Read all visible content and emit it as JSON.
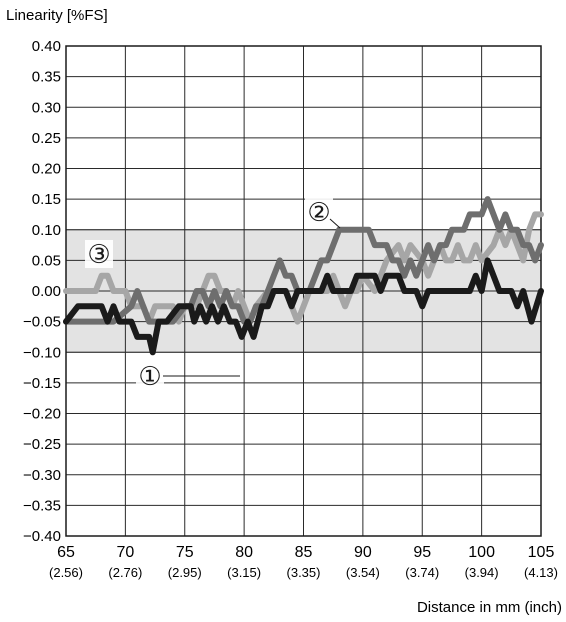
{
  "chart_data": {
    "type": "line",
    "title": "",
    "ylabel": "Linearity [%FS]",
    "xlabel": "Distance in mm (inch)",
    "xlim": [
      65,
      105
    ],
    "ylim": [
      -0.4,
      0.4
    ],
    "grid": true,
    "tolerance_band": [
      -0.1,
      0.1
    ],
    "x_ticks": [
      {
        "mm": "65",
        "inch": "(2.56)"
      },
      {
        "mm": "70",
        "inch": "(2.76)"
      },
      {
        "mm": "75",
        "inch": "(2.95)"
      },
      {
        "mm": "80",
        "inch": "(3.15)"
      },
      {
        "mm": "85",
        "inch": "(3.35)"
      },
      {
        "mm": "90",
        "inch": "(3.54)"
      },
      {
        "mm": "95",
        "inch": "(3.74)"
      },
      {
        "mm": "100",
        "inch": "(3.94)"
      },
      {
        "mm": "105",
        "inch": "(4.13)"
      }
    ],
    "y_ticks": [
      "0.40",
      "0.35",
      "0.30",
      "0.25",
      "0.20",
      "0.15",
      "0.10",
      "0.05",
      "0.00",
      "−0.05",
      "−0.10",
      "−0.15",
      "−0.20",
      "−0.25",
      "−0.30",
      "−0.35",
      "−0.40"
    ],
    "series": [
      {
        "label": "①",
        "color": "#1a1a1a",
        "points": [
          [
            65,
            -0.05
          ],
          [
            66,
            -0.025
          ],
          [
            68,
            -0.025
          ],
          [
            68.5,
            -0.05
          ],
          [
            69,
            -0.025
          ],
          [
            69.5,
            -0.05
          ],
          [
            70.5,
            -0.05
          ],
          [
            71,
            -0.075
          ],
          [
            72,
            -0.075
          ],
          [
            72.3,
            -0.1
          ],
          [
            72.8,
            -0.05
          ],
          [
            73.5,
            -0.05
          ],
          [
            74.5,
            -0.025
          ],
          [
            75.5,
            -0.025
          ],
          [
            75.8,
            -0.05
          ],
          [
            76.3,
            -0.025
          ],
          [
            76.8,
            -0.05
          ],
          [
            77.3,
            -0.025
          ],
          [
            77.8,
            -0.05
          ],
          [
            78.3,
            -0.025
          ],
          [
            78.8,
            -0.05
          ],
          [
            79.3,
            -0.05
          ],
          [
            79.8,
            -0.075
          ],
          [
            80.3,
            -0.05
          ],
          [
            80.8,
            -0.075
          ],
          [
            81.5,
            -0.025
          ],
          [
            82,
            -0.025
          ],
          [
            82.5,
            0
          ],
          [
            83.5,
            0
          ],
          [
            84,
            -0.025
          ],
          [
            84.5,
            0
          ],
          [
            86.5,
            0
          ],
          [
            87,
            0.025
          ],
          [
            87.5,
            0
          ],
          [
            89,
            0
          ],
          [
            89.5,
            0.025
          ],
          [
            91,
            0.025
          ],
          [
            91.5,
            0
          ],
          [
            92,
            0.025
          ],
          [
            93,
            0.025
          ],
          [
            93.5,
            0
          ],
          [
            94.5,
            0
          ],
          [
            95,
            -0.025
          ],
          [
            95.5,
            0
          ],
          [
            98,
            0
          ],
          [
            99,
            0
          ],
          [
            99.5,
            0.025
          ],
          [
            100,
            0
          ],
          [
            100.5,
            0.05
          ],
          [
            101,
            0.025
          ],
          [
            101.5,
            0
          ],
          [
            102.5,
            0
          ],
          [
            103,
            -0.025
          ],
          [
            103.5,
            0
          ],
          [
            104.2,
            -0.05
          ],
          [
            105,
            0
          ]
        ]
      },
      {
        "label": "②",
        "color": "#6e6e6e",
        "points": [
          [
            65,
            -0.05
          ],
          [
            66,
            -0.05
          ],
          [
            67,
            -0.05
          ],
          [
            68,
            -0.05
          ],
          [
            69,
            -0.05
          ],
          [
            70.5,
            -0.025
          ],
          [
            71,
            0
          ],
          [
            71.5,
            -0.025
          ],
          [
            72,
            -0.05
          ],
          [
            73,
            -0.05
          ],
          [
            74,
            -0.05
          ],
          [
            75,
            -0.025
          ],
          [
            75.5,
            -0.025
          ],
          [
            76,
            0
          ],
          [
            76.5,
            0
          ],
          [
            77,
            -0.025
          ],
          [
            77.5,
            0
          ],
          [
            78,
            -0.025
          ],
          [
            78.5,
            0
          ],
          [
            79,
            -0.025
          ],
          [
            79.5,
            -0.025
          ],
          [
            80,
            -0.05
          ],
          [
            80.5,
            -0.05
          ],
          [
            81,
            -0.025
          ],
          [
            81.5,
            -0.025
          ],
          [
            82,
            0
          ],
          [
            82.5,
            0.025
          ],
          [
            83,
            0.05
          ],
          [
            83.5,
            0.025
          ],
          [
            84,
            0.025
          ],
          [
            84.5,
            0
          ],
          [
            85.5,
            0
          ],
          [
            86,
            0.025
          ],
          [
            86.5,
            0.05
          ],
          [
            87,
            0.05
          ],
          [
            88,
            0.1
          ],
          [
            90,
            0.1
          ],
          [
            90.5,
            0.1
          ],
          [
            91,
            0.075
          ],
          [
            92,
            0.075
          ],
          [
            92.5,
            0.05
          ],
          [
            93,
            0.05
          ],
          [
            93.5,
            0.025
          ],
          [
            94,
            0.05
          ],
          [
            94.5,
            0.025
          ],
          [
            95,
            0.05
          ],
          [
            95.5,
            0.075
          ],
          [
            96,
            0.05
          ],
          [
            96.5,
            0.075
          ],
          [
            97,
            0.075
          ],
          [
            97.5,
            0.1
          ],
          [
            98.5,
            0.1
          ],
          [
            99,
            0.125
          ],
          [
            100,
            0.125
          ],
          [
            100.5,
            0.15
          ],
          [
            101,
            0.125
          ],
          [
            101.5,
            0.1
          ],
          [
            102,
            0.125
          ],
          [
            102.5,
            0.1
          ],
          [
            103,
            0.1
          ],
          [
            103.5,
            0.075
          ],
          [
            104,
            0.075
          ],
          [
            104.5,
            0.05
          ],
          [
            105,
            0.075
          ]
        ]
      },
      {
        "label": "③",
        "color": "#a6a6a6",
        "points": [
          [
            65,
            0
          ],
          [
            66,
            0
          ],
          [
            67,
            0
          ],
          [
            67.5,
            0
          ],
          [
            68,
            0.025
          ],
          [
            68.5,
            0.025
          ],
          [
            69,
            0
          ],
          [
            70,
            0
          ],
          [
            70.5,
            -0.025
          ],
          [
            71,
            -0.025
          ],
          [
            71.5,
            -0.025
          ],
          [
            72,
            -0.05
          ],
          [
            72.5,
            -0.025
          ],
          [
            73,
            -0.025
          ],
          [
            74,
            -0.025
          ],
          [
            74.5,
            -0.05
          ],
          [
            75,
            -0.025
          ],
          [
            76,
            -0.025
          ],
          [
            76.5,
            0
          ],
          [
            77,
            0.025
          ],
          [
            77.5,
            0.025
          ],
          [
            78,
            0
          ],
          [
            78.5,
            0
          ],
          [
            79,
            -0.025
          ],
          [
            79.5,
            0
          ],
          [
            80,
            -0.025
          ],
          [
            80.5,
            -0.05
          ],
          [
            81,
            -0.025
          ],
          [
            82,
            0
          ],
          [
            83,
            0
          ],
          [
            83.5,
            0
          ],
          [
            84,
            -0.025
          ],
          [
            84.5,
            -0.05
          ],
          [
            85,
            -0.025
          ],
          [
            85.5,
            0
          ],
          [
            86,
            0
          ],
          [
            87,
            0
          ],
          [
            87.5,
            0.025
          ],
          [
            88,
            0
          ],
          [
            88.5,
            -0.025
          ],
          [
            89,
            0
          ],
          [
            89.5,
            0
          ],
          [
            90,
            0.025
          ],
          [
            91,
            0
          ],
          [
            91.5,
            0.025
          ],
          [
            92,
            0.05
          ],
          [
            93,
            0.075
          ],
          [
            93.5,
            0.05
          ],
          [
            94,
            0.075
          ],
          [
            95,
            0.05
          ],
          [
            95.5,
            0.025
          ],
          [
            96,
            0.05
          ],
          [
            96.5,
            0.075
          ],
          [
            97,
            0.05
          ],
          [
            97.5,
            0.05
          ],
          [
            98,
            0.075
          ],
          [
            98.5,
            0.05
          ],
          [
            99,
            0.05
          ],
          [
            99.5,
            0.075
          ],
          [
            100,
            0.05
          ],
          [
            101,
            0.075
          ],
          [
            101.5,
            0.1
          ],
          [
            102,
            0.075
          ],
          [
            102.5,
            0.1
          ],
          [
            103,
            0.075
          ],
          [
            103.5,
            0.05
          ],
          [
            104,
            0.1
          ],
          [
            104.5,
            0.125
          ],
          [
            105,
            0.125
          ]
        ]
      }
    ],
    "annotations": [
      {
        "text": "①",
        "series": 0
      },
      {
        "text": "②",
        "series": 1
      },
      {
        "text": "③",
        "series": 2
      }
    ]
  }
}
